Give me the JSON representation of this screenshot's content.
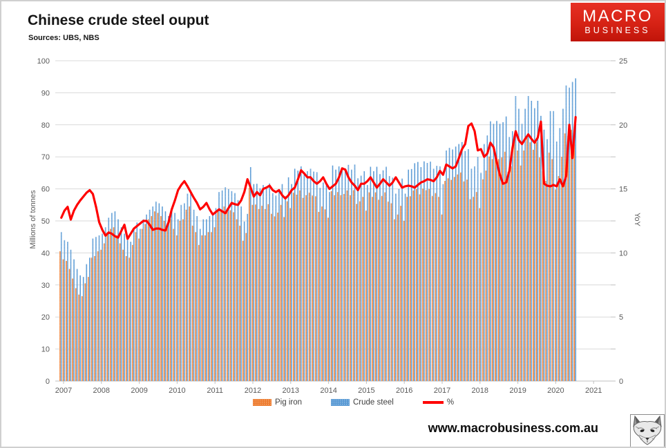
{
  "header": {
    "title": "Chinese crude steel ouput",
    "sources": "Sources: UBS, NBS"
  },
  "logo": {
    "line1": "MACRO",
    "line2": "BUSINESS",
    "bg_color": "#d62215",
    "text_color": "#ffffff"
  },
  "footer": {
    "url": "www.macrobusiness.com.au",
    "logo_icon": "fox-sketch"
  },
  "chart_data": {
    "type": "combo-bar-line",
    "frequency": "monthly",
    "x_start": "2007-01",
    "x_end": "2020-08",
    "x_tick_labels": [
      "2007",
      "2008",
      "2009",
      "2010",
      "2011",
      "2012",
      "2013",
      "2014",
      "2015",
      "2016",
      "2017",
      "2018",
      "2019",
      "2020",
      "2021"
    ],
    "left_axis": {
      "title": "Millions of tonnes",
      "min": 0,
      "max": 100,
      "step": 10
    },
    "right_axis": {
      "title": "YoY",
      "min": 0,
      "max": 25,
      "step": 5
    },
    "grid": true,
    "legend_position": "bottom",
    "gridline_color": "#D9D9D9",
    "axis_text_color": "#595959",
    "series": [
      {
        "name": "Pig iron",
        "type": "bar",
        "axis": "left",
        "color": "#ED7D31",
        "values": [
          40.5,
          38.0,
          37.5,
          35.0,
          32.0,
          29.0,
          27.0,
          26.5,
          30.5,
          32.5,
          38.5,
          39.0,
          40.5,
          41.0,
          43.0,
          46.0,
          47.5,
          48.0,
          45.5,
          43.0,
          41.0,
          39.0,
          38.5,
          42.5,
          46.5,
          44.5,
          47.5,
          49.0,
          50.5,
          51.5,
          53.0,
          52.5,
          51.5,
          50.0,
          48.5,
          50.5,
          47.5,
          45.5,
          50.0,
          50.5,
          53.5,
          54.5,
          48.5,
          46.5,
          42.5,
          45.5,
          45.5,
          46.5,
          46.5,
          48.0,
          53.0,
          53.5,
          54.5,
          53.9,
          53.3,
          52.7,
          50.5,
          48.5,
          43.8,
          46.2,
          60.3,
          55.0,
          55.1,
          53.7,
          54.7,
          53.7,
          55.2,
          52.2,
          51.4,
          52.6,
          55.0,
          51.2,
          56.1,
          54.0,
          58.8,
          58.2,
          59.5,
          57.2,
          58.0,
          58.8,
          57.9,
          57.7,
          52.8,
          54.5,
          53.6,
          51.0,
          59.3,
          58.0,
          59.0,
          58.0,
          58.4,
          59.5,
          58.0,
          59.6,
          55.3,
          56.1,
          57.5,
          53.2,
          58.9,
          57.5,
          58.9,
          56.6,
          57.8,
          58.9,
          56.0,
          55.5,
          50.5,
          52.0,
          54.7,
          50.0,
          57.5,
          57.7,
          59.5,
          59.9,
          58.3,
          60.1,
          59.6,
          60.0,
          57.8,
          58.7,
          57.5,
          52.0,
          62.5,
          63.3,
          62.8,
          63.7,
          64.5,
          65.1,
          62.3,
          62.9,
          56.8,
          57.5,
          59.0,
          54.0,
          63.0,
          65.7,
          70.1,
          69.3,
          70.2,
          69.3,
          69.8,
          71.6,
          65.2,
          67.0,
          76.0,
          72.0,
          67.3,
          72.0,
          76.0,
          74.5,
          72.2,
          74.5,
          69.8,
          65.5,
          62.5,
          71.3,
          69.3,
          59.8,
          64.0,
          70.0,
          77.3,
          76.6,
          78.4,
          79.5
        ]
      },
      {
        "name": "Crude steel",
        "type": "bar",
        "axis": "left",
        "color": "#5B9BD5",
        "values": [
          46.5,
          44.0,
          43.5,
          41.0,
          38.0,
          35.0,
          33.0,
          32.5,
          36.5,
          38.5,
          44.5,
          45.0,
          45.5,
          46.0,
          48.0,
          51.0,
          52.5,
          53.0,
          50.5,
          48.0,
          46.0,
          44.0,
          43.5,
          47.5,
          49.5,
          47.5,
          50.5,
          52.0,
          53.5,
          54.5,
          56.0,
          55.5,
          54.5,
          53.0,
          51.5,
          53.5,
          52.5,
          50.5,
          55.0,
          55.5,
          58.5,
          59.5,
          53.5,
          51.5,
          47.5,
          50.5,
          50.5,
          51.5,
          52.5,
          54.0,
          59.0,
          59.5,
          60.5,
          59.9,
          59.3,
          58.7,
          56.5,
          54.5,
          49.8,
          52.2,
          66.8,
          61.5,
          61.6,
          60.2,
          61.2,
          60.2,
          61.7,
          58.7,
          57.9,
          59.1,
          61.5,
          57.7,
          63.6,
          61.5,
          66.3,
          65.7,
          67.0,
          64.7,
          65.5,
          66.3,
          65.4,
          65.2,
          60.3,
          62.0,
          61.6,
          59.0,
          67.3,
          66.0,
          67.0,
          66.0,
          66.4,
          67.5,
          66.0,
          67.6,
          63.3,
          64.1,
          65.5,
          61.2,
          66.9,
          65.5,
          66.9,
          64.6,
          65.8,
          66.9,
          64.0,
          63.5,
          58.5,
          60.0,
          63.2,
          58.5,
          66.0,
          66.2,
          68.0,
          68.4,
          66.8,
          68.6,
          68.1,
          68.5,
          66.3,
          67.2,
          67.0,
          61.5,
          72.0,
          72.8,
          72.3,
          73.2,
          74.0,
          74.6,
          71.8,
          72.4,
          66.3,
          67.0,
          70.0,
          65.0,
          74.0,
          76.7,
          81.1,
          80.3,
          81.2,
          80.3,
          80.8,
          82.6,
          76.2,
          78.0,
          89.0,
          85.0,
          80.3,
          85.0,
          89.0,
          87.5,
          85.2,
          87.5,
          82.8,
          78.5,
          75.5,
          84.3,
          84.3,
          74.8,
          79.0,
          85.0,
          92.3,
          91.6,
          93.4,
          94.5
        ]
      },
      {
        "name": "%",
        "type": "line",
        "axis": "right",
        "color": "#FF0000",
        "values": [
          12.75,
          13.3,
          13.6,
          12.6,
          13.3,
          13.75,
          14.1,
          14.4,
          14.7,
          14.9,
          14.6,
          13.6,
          12.4,
          11.8,
          11.35,
          11.6,
          11.5,
          11.3,
          11.2,
          11.7,
          12.2,
          11.1,
          11.5,
          11.9,
          12.1,
          12.3,
          12.5,
          12.5,
          12.2,
          11.8,
          11.9,
          11.9,
          11.8,
          11.75,
          12.4,
          13.4,
          14.1,
          14.9,
          15.3,
          15.6,
          15.2,
          14.75,
          14.3,
          13.9,
          13.4,
          13.6,
          13.9,
          13.4,
          13.0,
          13.2,
          13.4,
          13.25,
          13.1,
          13.5,
          13.9,
          13.8,
          13.75,
          14.1,
          14.75,
          15.75,
          15.1,
          14.4,
          14.75,
          14.5,
          15.0,
          15.1,
          15.25,
          14.9,
          14.75,
          14.9,
          14.5,
          14.25,
          14.5,
          14.9,
          15.1,
          15.75,
          16.45,
          16.2,
          15.9,
          15.9,
          15.6,
          15.4,
          15.6,
          15.9,
          15.4,
          15.0,
          15.2,
          15.4,
          15.9,
          16.6,
          16.5,
          15.9,
          15.5,
          15.25,
          14.9,
          15.4,
          15.4,
          15.6,
          15.9,
          15.5,
          15.1,
          15.4,
          15.75,
          15.5,
          15.25,
          15.5,
          15.9,
          15.5,
          15.1,
          15.2,
          15.25,
          15.2,
          15.1,
          15.3,
          15.5,
          15.6,
          15.75,
          15.7,
          15.6,
          15.9,
          16.4,
          16.1,
          16.9,
          16.75,
          16.6,
          16.75,
          17.4,
          18.1,
          18.5,
          19.9,
          20.1,
          19.5,
          18.0,
          18.1,
          17.5,
          17.75,
          18.6,
          18.25,
          17.1,
          16.1,
          15.4,
          15.5,
          16.4,
          18.2,
          19.5,
          18.8,
          18.5,
          18.9,
          19.25,
          18.9,
          18.6,
          19.0,
          20.25,
          15.4,
          15.25,
          15.2,
          15.3,
          15.2,
          15.75,
          15.2,
          16.0,
          20.0,
          17.4,
          20.6
        ]
      }
    ]
  }
}
